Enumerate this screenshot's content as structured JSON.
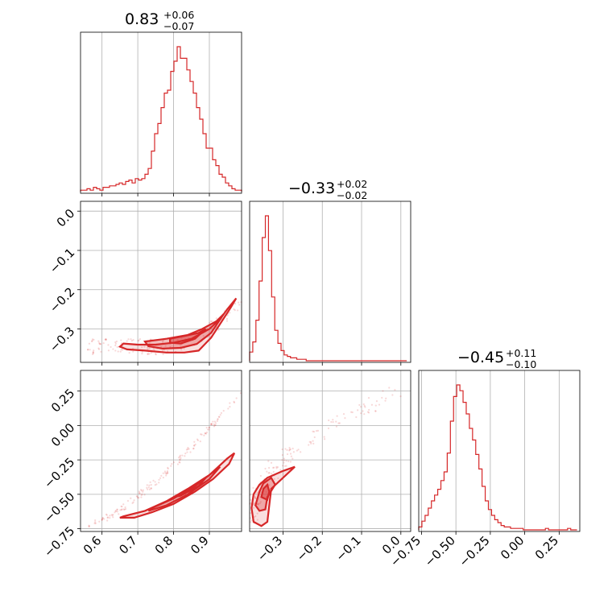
{
  "color": "#d62728",
  "chart_data": {
    "type": "corner",
    "parameters": [
      {
        "summary": {
          "median": "0.83",
          "plus": "+0.06",
          "minus": "−0.07"
        },
        "range": [
          0.54,
          0.99
        ],
        "ticks": [
          0.6,
          0.7,
          0.8,
          0.9
        ],
        "tick_labels": [
          "0.6",
          "0.7",
          "0.8",
          "0.9"
        ],
        "hist": {
          "x0": 0.54,
          "dx": 0.009,
          "counts": [
            1,
            1,
            2,
            1,
            3,
            2,
            1,
            3,
            3,
            4,
            4,
            5,
            6,
            5,
            7,
            8,
            6,
            9,
            8,
            9,
            12,
            16,
            28,
            40,
            47,
            58,
            68,
            70,
            83,
            90,
            100,
            92,
            92,
            84,
            76,
            68,
            58,
            50,
            40,
            30,
            30,
            22,
            18,
            12,
            10,
            6,
            4,
            2,
            1,
            1
          ]
        }
      },
      {
        "summary": {
          "median": "−0.33",
          "plus": "+0.02",
          "minus": "−0.02"
        },
        "range": [
          -0.385,
          0.025
        ],
        "ticks": [
          -0.3,
          -0.2,
          -0.1,
          0.0
        ],
        "tick_labels": [
          "−0.3",
          "−0.2",
          "−0.1",
          "0.0"
        ],
        "hist": {
          "x0": -0.385,
          "dx": 0.008,
          "counts": [
            6,
            13,
            28,
            55,
            85,
            100,
            76,
            44,
            21,
            12,
            7,
            4,
            3,
            2,
            2,
            1,
            1,
            1,
            0,
            0,
            0,
            0,
            0,
            0,
            0,
            0,
            0,
            0,
            0,
            0,
            0,
            0,
            0,
            0,
            0,
            0,
            0,
            0,
            0,
            0,
            0,
            0,
            0,
            0,
            0,
            0,
            0,
            0,
            0,
            0
          ]
        }
      },
      {
        "summary": {
          "median": "−0.45",
          "plus": "+0.11",
          "minus": "−0.10"
        },
        "range": [
          -0.77,
          0.4
        ],
        "ticks": [
          -0.75,
          -0.5,
          -0.25,
          0.0,
          0.25
        ],
        "tick_labels": [
          "−0.75",
          "−0.50",
          "−0.25",
          "0.00",
          "0.25"
        ],
        "hist": {
          "x0": -0.77,
          "dx": 0.023,
          "counts": [
            2,
            6,
            10,
            15,
            20,
            24,
            28,
            34,
            40,
            53,
            75,
            92,
            100,
            96,
            88,
            80,
            70,
            62,
            52,
            42,
            30,
            20,
            14,
            10,
            7,
            5,
            3,
            2,
            2,
            1,
            1,
            1,
            1,
            0,
            0,
            0,
            0,
            0,
            0,
            0,
            1,
            0,
            0,
            0,
            0,
            0,
            0,
            1,
            0,
            0
          ]
        }
      }
    ],
    "pairs": [
      {
        "x_param": 0,
        "y_param": 1,
        "y_ticks": [
          0.0,
          -0.1,
          -0.2,
          -0.3
        ],
        "y_tick_labels": [
          "0.0",
          "−0.1",
          "−0.2",
          "−0.3"
        ],
        "contours": [
          [
            [
              0.66,
              -0.337
            ],
            [
              0.7,
              -0.34
            ],
            [
              0.75,
              -0.34
            ],
            [
              0.8,
              -0.335
            ],
            [
              0.85,
              -0.325
            ],
            [
              0.9,
              -0.3
            ],
            [
              0.93,
              -0.275
            ],
            [
              0.95,
              -0.25
            ],
            [
              0.975,
              -0.222
            ],
            [
              0.96,
              -0.245
            ],
            [
              0.935,
              -0.28
            ],
            [
              0.905,
              -0.322
            ],
            [
              0.87,
              -0.355
            ],
            [
              0.83,
              -0.36
            ],
            [
              0.78,
              -0.36
            ],
            [
              0.72,
              -0.355
            ],
            [
              0.67,
              -0.352
            ],
            [
              0.65,
              -0.345
            ]
          ],
          [
            [
              0.72,
              -0.332
            ],
            [
              0.78,
              -0.325
            ],
            [
              0.84,
              -0.315
            ],
            [
              0.88,
              -0.3
            ],
            [
              0.92,
              -0.28
            ],
            [
              0.94,
              -0.262
            ],
            [
              0.905,
              -0.31
            ],
            [
              0.865,
              -0.338
            ],
            [
              0.82,
              -0.348
            ],
            [
              0.77,
              -0.35
            ],
            [
              0.73,
              -0.344
            ]
          ],
          [
            [
              0.79,
              -0.325
            ],
            [
              0.83,
              -0.318
            ],
            [
              0.87,
              -0.31
            ],
            [
              0.89,
              -0.3
            ],
            [
              0.86,
              -0.325
            ],
            [
              0.82,
              -0.337
            ],
            [
              0.79,
              -0.335
            ]
          ]
        ],
        "cloud": {
          "x_range": [
            0.56,
            0.99
          ],
          "y_center": -0.33,
          "scatter": 0.03
        }
      },
      {
        "x_param": 0,
        "y_param": 2,
        "y_ticks": [
          0.25,
          0.0,
          -0.25,
          -0.5,
          -0.75
        ],
        "y_tick_labels": [
          "0.25",
          "0.00",
          "−0.25",
          "−0.50",
          "−0.75"
        ],
        "contours": [
          [
            [
              0.66,
              -0.66
            ],
            [
              0.72,
              -0.62
            ],
            [
              0.78,
              -0.55
            ],
            [
              0.84,
              -0.46
            ],
            [
              0.9,
              -0.36
            ],
            [
              0.95,
              -0.24
            ],
            [
              0.97,
              -0.2
            ],
            [
              0.955,
              -0.28
            ],
            [
              0.91,
              -0.39
            ],
            [
              0.86,
              -0.48
            ],
            [
              0.8,
              -0.57
            ],
            [
              0.74,
              -0.63
            ],
            [
              0.69,
              -0.67
            ],
            [
              0.65,
              -0.67
            ]
          ],
          [
            [
              0.74,
              -0.6
            ],
            [
              0.8,
              -0.53
            ],
            [
              0.86,
              -0.44
            ],
            [
              0.91,
              -0.34
            ],
            [
              0.93,
              -0.3
            ],
            [
              0.9,
              -0.39
            ],
            [
              0.84,
              -0.5
            ],
            [
              0.78,
              -0.58
            ],
            [
              0.73,
              -0.62
            ]
          ],
          [
            [
              0.8,
              -0.52
            ],
            [
              0.85,
              -0.45
            ],
            [
              0.89,
              -0.38
            ],
            [
              0.87,
              -0.44
            ],
            [
              0.82,
              -0.51
            ]
          ]
        ],
        "cloud": {
          "x_range": [
            0.56,
            0.99
          ],
          "y_curve": "rising",
          "scatter": 0.03
        }
      },
      {
        "x_param": 1,
        "y_param": 2,
        "contours": [
          [
            [
              -0.38,
              -0.6
            ],
            [
              -0.375,
              -0.5
            ],
            [
              -0.36,
              -0.43
            ],
            [
              -0.34,
              -0.38
            ],
            [
              -0.3,
              -0.33
            ],
            [
              -0.27,
              -0.3
            ],
            [
              -0.3,
              -0.38
            ],
            [
              -0.33,
              -0.46
            ],
            [
              -0.335,
              -0.58
            ],
            [
              -0.34,
              -0.7
            ],
            [
              -0.355,
              -0.73
            ],
            [
              -0.375,
              -0.7
            ]
          ],
          [
            [
              -0.37,
              -0.58
            ],
            [
              -0.36,
              -0.48
            ],
            [
              -0.35,
              -0.42
            ],
            [
              -0.33,
              -0.38
            ],
            [
              -0.32,
              -0.43
            ],
            [
              -0.34,
              -0.52
            ],
            [
              -0.345,
              -0.61
            ],
            [
              -0.36,
              -0.62
            ]
          ],
          [
            [
              -0.355,
              -0.52
            ],
            [
              -0.35,
              -0.46
            ],
            [
              -0.34,
              -0.43
            ],
            [
              -0.335,
              -0.48
            ],
            [
              -0.34,
              -0.54
            ]
          ]
        ],
        "cloud": {
          "x_center": -0.34,
          "y_range": [
            -0.76,
            0.05
          ],
          "scatter": 0.02
        }
      }
    ]
  }
}
